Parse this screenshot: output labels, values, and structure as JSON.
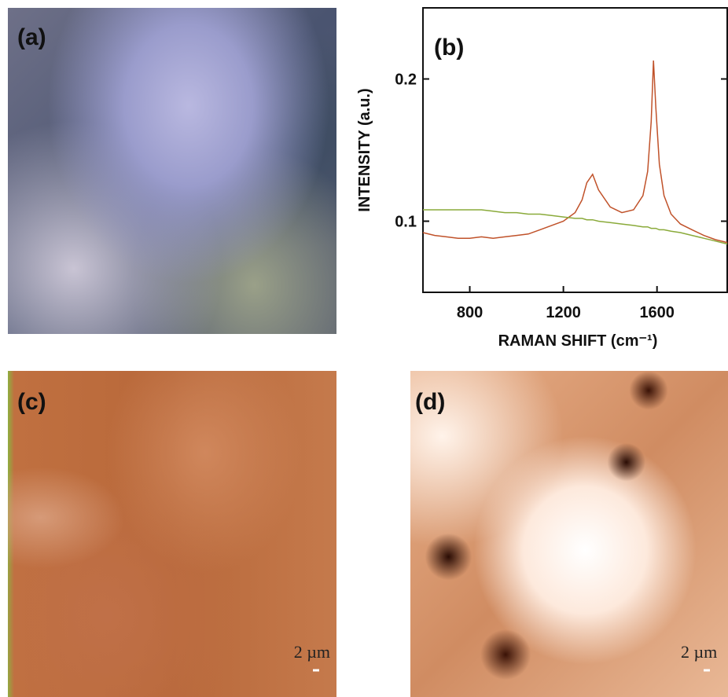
{
  "panel_labels": [
    "(a)",
    "(b)",
    "(c)",
    "(d)"
  ],
  "scale_bars": [
    "2 µm",
    "2 µm"
  ],
  "chart_data": {
    "type": "line",
    "y_label": "INTENSITY (a.u.)",
    "x_label": "RAMAN SHIFT (cm⁻¹)",
    "x": [
      600,
      650,
      700,
      750,
      800,
      850,
      900,
      950,
      1000,
      1050,
      1100,
      1150,
      1200,
      1250,
      1280,
      1300,
      1325,
      1350,
      1400,
      1450,
      1500,
      1540,
      1560,
      1575,
      1585,
      1595,
      1610,
      1630,
      1660,
      1700,
      1750,
      1800,
      1850,
      1900
    ],
    "series": [
      {
        "color": "#c0522a",
        "values": [
          0.092,
          0.09,
          0.089,
          0.088,
          0.088,
          0.089,
          0.088,
          0.089,
          0.09,
          0.091,
          0.094,
          0.097,
          0.1,
          0.106,
          0.115,
          0.127,
          0.133,
          0.122,
          0.11,
          0.106,
          0.108,
          0.118,
          0.135,
          0.17,
          0.213,
          0.18,
          0.14,
          0.118,
          0.105,
          0.098,
          0.094,
          0.09,
          0.087,
          0.085
        ]
      },
      {
        "color": "#8aaa3a",
        "values": [
          0.108,
          0.108,
          0.108,
          0.108,
          0.108,
          0.108,
          0.107,
          0.106,
          0.106,
          0.105,
          0.105,
          0.104,
          0.103,
          0.102,
          0.102,
          0.101,
          0.101,
          0.1,
          0.099,
          0.098,
          0.097,
          0.096,
          0.096,
          0.095,
          0.095,
          0.095,
          0.094,
          0.094,
          0.093,
          0.092,
          0.09,
          0.088,
          0.086,
          0.084
        ]
      }
    ],
    "xlim": [
      600,
      1900
    ],
    "ylim": [
      0.05,
      0.25
    ],
    "xticks": [
      800,
      1200,
      1600
    ],
    "yticks": [
      0.1,
      0.2
    ],
    "grid": false
  }
}
